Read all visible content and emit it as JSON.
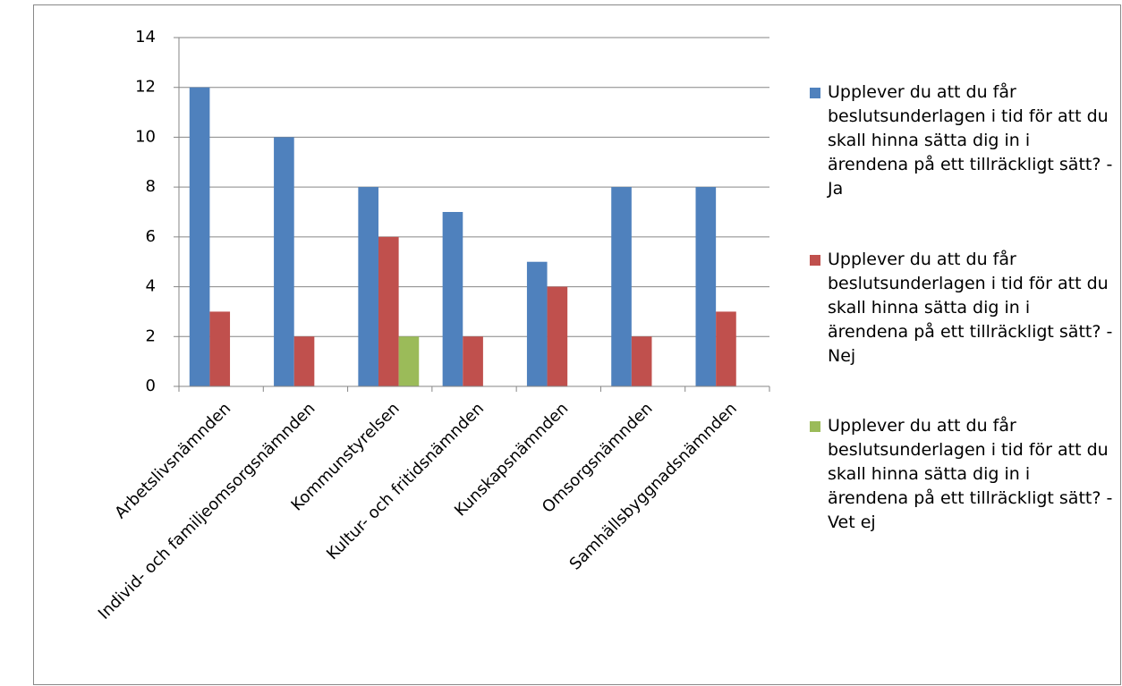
{
  "chart_data": {
    "type": "bar",
    "categories": [
      "Arbetslivsnämnden",
      "Individ- och familjeomsorgsnämnden",
      "Kommunstyrelsen",
      "Kultur- och fritidsnämnden",
      "Kunskapsnämnden",
      "Omsorgsnämnden",
      "Samhällsbyggnadsnämnden"
    ],
    "series": [
      {
        "name": "Upplever du att du får beslutsunderlagen i tid för att du skall hinna sätta dig in i ärendena på ett tillräckligt sätt? - Ja",
        "color": "#4f81bd",
        "values": [
          12,
          10,
          8,
          7,
          5,
          8,
          8
        ]
      },
      {
        "name": "Upplever du att du får beslutsunderlagen i tid för att du skall hinna sätta dig in i ärendena på ett tillräckligt sätt? - Nej",
        "color": "#c0504d",
        "values": [
          3,
          2,
          6,
          2,
          4,
          2,
          3
        ]
      },
      {
        "name": "Upplever du att du får beslutsunderlagen i tid för att du skall hinna sätta dig in i ärendena på ett tillräckligt sätt? - Vet ej",
        "color": "#9bbb59",
        "values": [
          0,
          0,
          2,
          0,
          0,
          0,
          0
        ]
      }
    ],
    "ylim": [
      0,
      14
    ],
    "yticks": [
      0,
      2,
      4,
      6,
      8,
      10,
      12,
      14
    ],
    "grid": true,
    "legend": "right"
  }
}
